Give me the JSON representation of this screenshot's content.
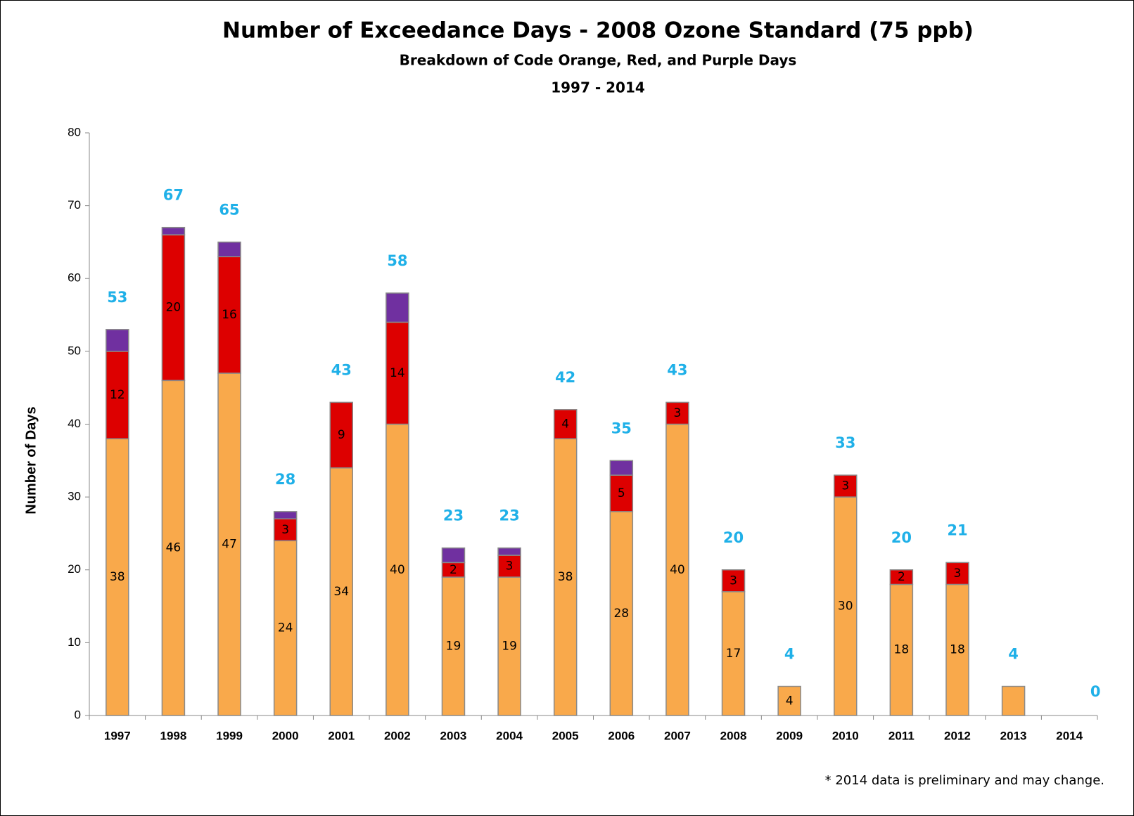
{
  "chart_data": {
    "type": "stacked_bar",
    "title": "Number of Exceedance Days - 2008 Ozone Standard (75 ppb)",
    "subtitle": "Breakdown of Code Orange, Red, and Purple Days",
    "subtitle2": "1997 - 2014",
    "y_label": "Number of Days",
    "footnote": "*  2014 data is preliminary and may change.",
    "categories": [
      "1997",
      "1998",
      "1999",
      "2000",
      "2001",
      "2002",
      "2003",
      "2004",
      "2005",
      "2006",
      "2007",
      "2008",
      "2009",
      "2010",
      "2011",
      "2012",
      "2013",
      "2014"
    ],
    "series": [
      {
        "color": "#f9a94b",
        "values": [
          38,
          46,
          47,
          24,
          34,
          40,
          19,
          19,
          38,
          28,
          40,
          17,
          4,
          30,
          18,
          18,
          4,
          0
        ],
        "value_labels": [
          "38",
          "46",
          "47",
          "24",
          "34",
          "40",
          "19",
          "19",
          "38",
          "28",
          "40",
          "17",
          "4",
          "30",
          "18",
          "18",
          null,
          null
        ]
      },
      {
        "color": "#dd0000",
        "values": [
          12,
          20,
          16,
          3,
          9,
          14,
          2,
          3,
          4,
          5,
          3,
          3,
          0,
          3,
          2,
          3,
          0,
          0
        ],
        "value_labels": [
          "12",
          "20",
          "16",
          "3",
          "9",
          "14",
          "2",
          "3",
          "4",
          "5",
          "3",
          "3",
          null,
          "3",
          "2",
          "3",
          null,
          null
        ]
      },
      {
        "color": "#7030a0",
        "values": [
          3,
          1,
          2,
          1,
          0,
          4,
          2,
          1,
          0,
          2,
          0,
          0,
          0,
          0,
          0,
          0,
          0,
          0
        ]
      }
    ],
    "totals": [
      53,
      67,
      65,
      28,
      43,
      58,
      23,
      23,
      42,
      35,
      43,
      20,
      4,
      33,
      20,
      21,
      4,
      0
    ],
    "totals_color": "#1fb0e8",
    "ylim": [
      0,
      80
    ],
    "yticks": [
      0,
      10,
      20,
      30,
      40,
      50,
      60,
      70,
      80
    ]
  }
}
